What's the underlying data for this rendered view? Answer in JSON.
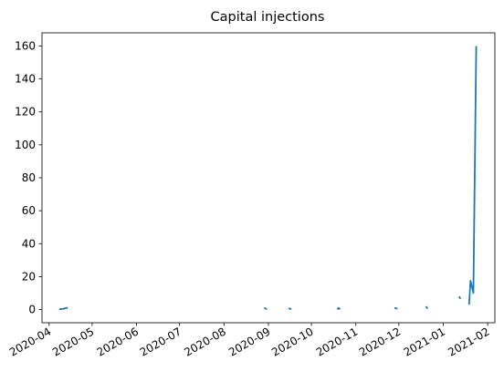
{
  "chart_data": {
    "type": "line",
    "title": "Capital injections",
    "xlabel": "",
    "ylabel": "",
    "grid": false,
    "legend": "none",
    "color": "#1f77b4",
    "xlim": [
      "2020-03-27",
      "2021-02-06"
    ],
    "ylim": [
      -8,
      168
    ],
    "y_ticks": [
      0,
      20,
      40,
      60,
      80,
      100,
      120,
      140,
      160
    ],
    "x_ticks": [
      {
        "date": "2020-04-01",
        "label": "2020-04"
      },
      {
        "date": "2020-05-01",
        "label": "2020-05"
      },
      {
        "date": "2020-06-01",
        "label": "2020-06"
      },
      {
        "date": "2020-07-01",
        "label": "2020-07"
      },
      {
        "date": "2020-08-01",
        "label": "2020-08"
      },
      {
        "date": "2020-09-01",
        "label": "2020-09"
      },
      {
        "date": "2020-10-01",
        "label": "2020-10"
      },
      {
        "date": "2020-11-01",
        "label": "2020-11"
      },
      {
        "date": "2020-12-01",
        "label": "2020-12"
      },
      {
        "date": "2021-01-01",
        "label": "2021-01"
      },
      {
        "date": "2021-02-01",
        "label": "2021-02"
      }
    ],
    "series": [
      {
        "segments": [
          [
            [
              "2020-04-08",
              0.2
            ],
            [
              "2020-04-11",
              0.5
            ],
            [
              "2020-04-14",
              1.2
            ]
          ],
          [
            [
              "2020-08-29",
              1.0
            ],
            [
              "2020-08-31",
              0.2
            ]
          ],
          [
            [
              "2020-09-15",
              0.8
            ],
            [
              "2020-09-17",
              0.2
            ]
          ],
          [
            [
              "2020-10-19",
              0.1
            ],
            [
              "2020-10-20",
              1.0
            ],
            [
              "2020-10-21",
              0.2
            ]
          ],
          [
            [
              "2020-11-28",
              1.0
            ],
            [
              "2020-11-30",
              0.5
            ]
          ],
          [
            [
              "2020-12-20",
              2.0
            ],
            [
              "2020-12-21",
              0.5
            ]
          ],
          [
            [
              "2021-01-12",
              8.0
            ],
            [
              "2021-01-13",
              6.5
            ]
          ],
          [
            [
              "2021-01-19",
              3.0
            ],
            [
              "2021-01-20",
              17.5
            ],
            [
              "2021-01-22",
              10.0
            ],
            [
              "2021-01-24",
              160.0
            ]
          ]
        ]
      }
    ]
  }
}
